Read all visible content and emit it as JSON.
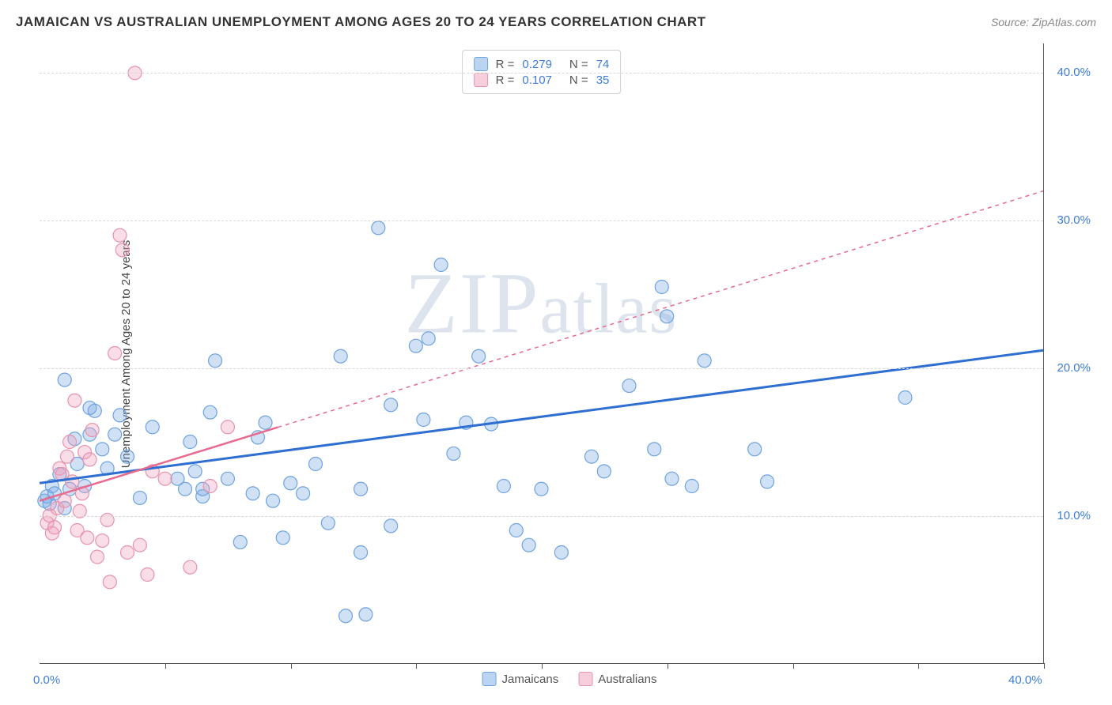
{
  "header": {
    "title": "JAMAICAN VS AUSTRALIAN UNEMPLOYMENT AMONG AGES 20 TO 24 YEARS CORRELATION CHART",
    "source": "Source: ZipAtlas.com"
  },
  "watermark": "ZIPatlas",
  "chart": {
    "type": "scatter",
    "y_axis_label": "Unemployment Among Ages 20 to 24 years",
    "xlim": [
      0,
      40
    ],
    "ylim": [
      0,
      42
    ],
    "x_ticks_pos": [
      5,
      10,
      15,
      20,
      25,
      30,
      35,
      40
    ],
    "x_tick_labels": {
      "0": "0.0%",
      "40": "40.0%"
    },
    "y_ticks": [
      {
        "v": 10,
        "label": "10.0%"
      },
      {
        "v": 20,
        "label": "20.0%"
      },
      {
        "v": 30,
        "label": "30.0%"
      },
      {
        "v": 40,
        "label": "40.0%"
      }
    ],
    "grid_color": "#d9d9d9",
    "background_color": "#ffffff",
    "marker_radius": 8.5,
    "marker_stroke_width": 1.2,
    "series": [
      {
        "name": "Jamaicans",
        "fill": "rgba(120,170,230,0.35)",
        "stroke": "#6fa3e0",
        "line_color": "#2e6fd1",
        "line_width": 3,
        "line_dash": "none",
        "trend": {
          "x1": 0,
          "y1": 12.2,
          "x2": 40,
          "y2": 21.2
        },
        "R": "0.279",
        "N": "74",
        "points": [
          [
            0.2,
            11.0
          ],
          [
            0.3,
            11.3
          ],
          [
            0.4,
            10.8
          ],
          [
            0.5,
            12.0
          ],
          [
            0.6,
            11.5
          ],
          [
            0.8,
            12.8
          ],
          [
            1.0,
            10.5
          ],
          [
            1.2,
            11.8
          ],
          [
            1.4,
            15.2
          ],
          [
            1.5,
            13.5
          ],
          [
            1.8,
            12.0
          ],
          [
            2.0,
            17.3
          ],
          [
            2.0,
            15.5
          ],
          [
            2.2,
            17.1
          ],
          [
            2.5,
            14.5
          ],
          [
            2.7,
            13.2
          ],
          [
            3.0,
            15.5
          ],
          [
            3.2,
            16.8
          ],
          [
            3.5,
            14.0
          ],
          [
            4.0,
            11.2
          ],
          [
            5.5,
            12.5
          ],
          [
            5.8,
            11.8
          ],
          [
            6.0,
            15.0
          ],
          [
            6.2,
            13.0
          ],
          [
            6.5,
            11.3
          ],
          [
            6.8,
            17.0
          ],
          [
            7.0,
            20.5
          ],
          [
            7.5,
            12.5
          ],
          [
            8.0,
            8.2
          ],
          [
            8.5,
            11.5
          ],
          [
            8.7,
            15.3
          ],
          [
            9.0,
            16.3
          ],
          [
            9.3,
            11.0
          ],
          [
            9.7,
            8.5
          ],
          [
            10.0,
            12.2
          ],
          [
            10.5,
            11.5
          ],
          [
            11.0,
            13.5
          ],
          [
            11.5,
            9.5
          ],
          [
            12.0,
            20.8
          ],
          [
            12.2,
            3.2
          ],
          [
            12.8,
            11.8
          ],
          [
            13.0,
            3.3
          ],
          [
            13.5,
            29.5
          ],
          [
            14.0,
            17.5
          ],
          [
            14.0,
            9.3
          ],
          [
            15.0,
            21.5
          ],
          [
            15.3,
            16.5
          ],
          [
            15.5,
            22.0
          ],
          [
            16.0,
            27.0
          ],
          [
            16.5,
            14.2
          ],
          [
            17.0,
            16.3
          ],
          [
            17.5,
            20.8
          ],
          [
            18.0,
            16.2
          ],
          [
            18.5,
            12.0
          ],
          [
            19.0,
            9.0
          ],
          [
            19.5,
            8.0
          ],
          [
            20.0,
            11.8
          ],
          [
            20.8,
            7.5
          ],
          [
            22.0,
            14.0
          ],
          [
            22.5,
            13.0
          ],
          [
            23.5,
            18.8
          ],
          [
            24.5,
            14.5
          ],
          [
            24.8,
            25.5
          ],
          [
            25.0,
            23.5
          ],
          [
            25.2,
            12.5
          ],
          [
            26.0,
            12.0
          ],
          [
            26.5,
            20.5
          ],
          [
            28.5,
            14.5
          ],
          [
            29.0,
            12.3
          ],
          [
            34.5,
            18.0
          ],
          [
            12.8,
            7.5
          ],
          [
            6.5,
            11.8
          ],
          [
            4.5,
            16.0
          ],
          [
            1.0,
            19.2
          ]
        ]
      },
      {
        "name": "Australians",
        "fill": "rgba(240,160,185,0.35)",
        "stroke": "#e793ad",
        "line_color": "#e86a8f",
        "line_width": 2.5,
        "line_dash": "5,5",
        "trend_solid_until": 9.5,
        "trend": {
          "x1": 0,
          "y1": 11.0,
          "x2": 40,
          "y2": 32.0
        },
        "R": "0.107",
        "N": "35",
        "points": [
          [
            0.3,
            9.5
          ],
          [
            0.4,
            10.0
          ],
          [
            0.5,
            8.8
          ],
          [
            0.6,
            9.2
          ],
          [
            0.7,
            10.5
          ],
          [
            0.8,
            13.2
          ],
          [
            0.9,
            12.8
          ],
          [
            1.0,
            11.0
          ],
          [
            1.1,
            14.0
          ],
          [
            1.2,
            15.0
          ],
          [
            1.3,
            12.3
          ],
          [
            1.4,
            17.8
          ],
          [
            1.5,
            9.0
          ],
          [
            1.6,
            10.3
          ],
          [
            1.7,
            11.5
          ],
          [
            1.8,
            14.3
          ],
          [
            1.9,
            8.5
          ],
          [
            2.0,
            13.8
          ],
          [
            2.1,
            15.8
          ],
          [
            2.3,
            7.2
          ],
          [
            2.5,
            8.3
          ],
          [
            2.7,
            9.7
          ],
          [
            2.8,
            5.5
          ],
          [
            3.0,
            21.0
          ],
          [
            3.2,
            29.0
          ],
          [
            3.3,
            28.0
          ],
          [
            3.5,
            7.5
          ],
          [
            3.8,
            40.0
          ],
          [
            4.0,
            8.0
          ],
          [
            4.3,
            6.0
          ],
          [
            4.5,
            13.0
          ],
          [
            5.0,
            12.5
          ],
          [
            6.0,
            6.5
          ],
          [
            6.8,
            12.0
          ],
          [
            7.5,
            16.0
          ]
        ]
      }
    ],
    "legend": {
      "blue_swatch_fill": "rgba(120,170,230,0.5)",
      "blue_swatch_stroke": "#6fa3e0",
      "pink_swatch_fill": "rgba(240,160,185,0.5)",
      "pink_swatch_stroke": "#e793ad"
    }
  }
}
